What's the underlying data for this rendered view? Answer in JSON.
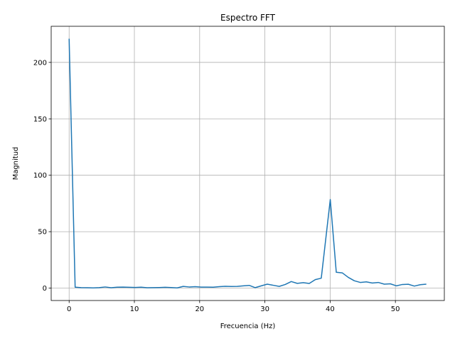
{
  "chart_data": {
    "type": "line",
    "title": "Espectro FFT",
    "xlabel": "Frecuencia (Hz)",
    "ylabel": "Magnitud",
    "xlim": [
      -2.75,
      57.5
    ],
    "ylim": [
      -11,
      232
    ],
    "xticks": [
      0,
      10,
      20,
      30,
      40,
      50
    ],
    "yticks": [
      0,
      50,
      100,
      150,
      200
    ],
    "grid": true,
    "series": [
      {
        "color": "#1f77b4",
        "x": [
          0,
          0.92,
          1.84,
          2.76,
          3.68,
          4.6,
          5.52,
          6.44,
          7.36,
          8.28,
          9.2,
          10.12,
          11.04,
          11.96,
          12.88,
          13.8,
          14.72,
          15.64,
          16.56,
          17.48,
          18.4,
          19.32,
          20.24,
          21.16,
          22.08,
          23.0,
          23.92,
          24.84,
          25.76,
          26.68,
          27.6,
          28.52,
          29.44,
          30.36,
          31.28,
          32.2,
          33.12,
          34.04,
          34.96,
          35.88,
          36.8,
          37.72,
          38.64,
          39.1,
          40.02,
          40.94,
          41.86,
          42.78,
          43.7,
          44.62,
          45.54,
          46.46,
          47.38,
          48.3,
          49.22,
          50.14,
          51.06,
          51.98,
          52.9,
          53.82,
          54.74
        ],
        "values": [
          221,
          0.8,
          0.4,
          0.3,
          0.2,
          0.4,
          1.0,
          0.3,
          0.8,
          0.9,
          0.7,
          0.6,
          0.8,
          0.3,
          0.4,
          0.5,
          0.7,
          0.5,
          0.2,
          1.5,
          1.0,
          1.3,
          0.9,
          0.9,
          0.8,
          1.3,
          1.6,
          1.4,
          1.5,
          2.0,
          2.4,
          0.4,
          2.0,
          3.5,
          2.5,
          1.5,
          3.2,
          5.8,
          4.2,
          4.8,
          4.1,
          7.5,
          8.8,
          32.0,
          78.5,
          14.0,
          13.5,
          9.5,
          6.5,
          5.0,
          5.5,
          4.5,
          5.0,
          3.5,
          3.8,
          2.0,
          3.2,
          3.4,
          1.8,
          3.0,
          3.5
        ]
      }
    ]
  }
}
